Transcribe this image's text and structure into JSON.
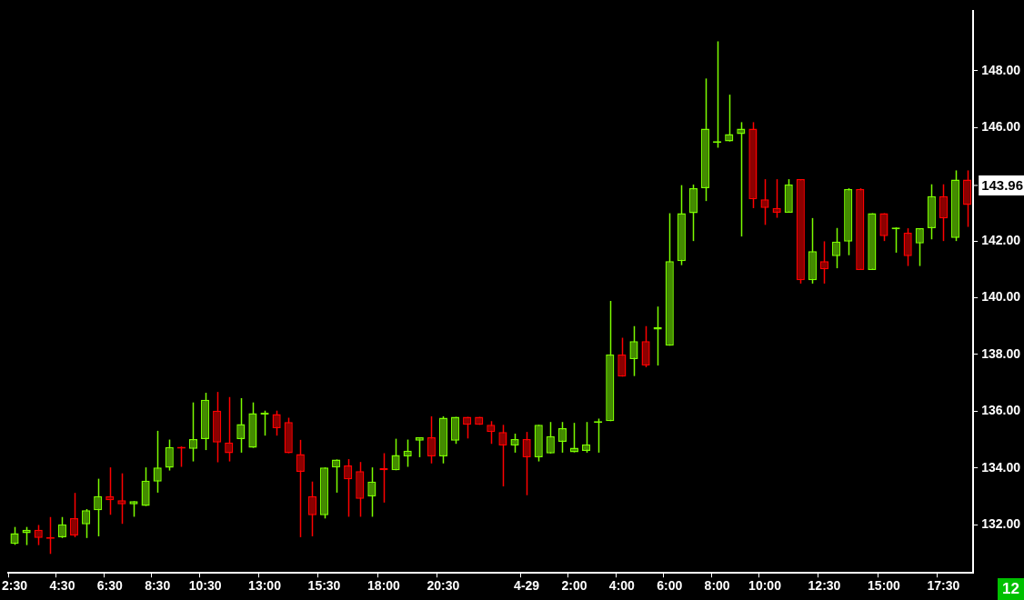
{
  "chart_data": {
    "type": "candlestick",
    "categories": [
      "2:30",
      null,
      null,
      null,
      "4:30",
      null,
      null,
      null,
      "6:30",
      null,
      null,
      null,
      "8:30",
      null,
      null,
      null,
      "10:30",
      null,
      null,
      null,
      null,
      "13:00",
      null,
      null,
      null,
      null,
      "15:30",
      null,
      null,
      null,
      null,
      "18:00",
      null,
      null,
      null,
      null,
      "20:30",
      null,
      null,
      null,
      null,
      null,
      null,
      "4-29",
      null,
      null,
      null,
      "2:00",
      null,
      null,
      null,
      "4:00",
      null,
      null,
      null,
      "6:00",
      null,
      null,
      null,
      "8:00",
      null,
      null,
      null,
      "10:00",
      null,
      null,
      null,
      null,
      "12:30",
      null,
      null,
      null,
      null,
      "15:00",
      null,
      null,
      null,
      null,
      "17:30",
      null,
      null
    ],
    "ohlc": [
      [
        131.32,
        131.92,
        131.29,
        131.7
      ],
      [
        131.7,
        131.92,
        131.28,
        131.82
      ],
      [
        131.82,
        131.99,
        131.28,
        131.53
      ],
      [
        131.55,
        132.27,
        130.97,
        131.5
      ],
      [
        131.56,
        132.27,
        131.53,
        132.01
      ],
      [
        132.23,
        133.12,
        131.56,
        131.62
      ],
      [
        132.01,
        132.55,
        131.53,
        132.51
      ],
      [
        132.51,
        133.62,
        131.59,
        133.01
      ],
      [
        133.01,
        134.02,
        132.35,
        132.86
      ],
      [
        132.86,
        133.81,
        132.03,
        132.72
      ],
      [
        132.72,
        132.83,
        132.28,
        132.83
      ],
      [
        132.66,
        134.02,
        132.66,
        133.55
      ],
      [
        133.52,
        135.31,
        133.13,
        134.02
      ],
      [
        134.01,
        135.0,
        133.91,
        134.74
      ],
      [
        134.74,
        134.76,
        134.04,
        134.68
      ],
      [
        134.67,
        136.31,
        134.23,
        135.02
      ],
      [
        135.02,
        136.65,
        134.63,
        136.4
      ],
      [
        136.02,
        136.68,
        134.2,
        134.9
      ],
      [
        134.9,
        136.5,
        134.23,
        134.52
      ],
      [
        135.02,
        136.46,
        134.54,
        135.55
      ],
      [
        134.71,
        136.31,
        134.71,
        135.93
      ],
      [
        135.88,
        136.02,
        135.14,
        135.93
      ],
      [
        135.9,
        136.02,
        135.14,
        135.4
      ],
      [
        135.62,
        135.77,
        134.52,
        134.52
      ],
      [
        134.49,
        134.99,
        131.56,
        133.86
      ],
      [
        133.01,
        133.52,
        131.59,
        132.33
      ],
      [
        132.33,
        134.02,
        132.22,
        134.02
      ],
      [
        134.02,
        134.3,
        133.13,
        134.3
      ],
      [
        134.09,
        134.31,
        132.28,
        133.6
      ],
      [
        133.89,
        134.21,
        132.28,
        132.91
      ],
      [
        133.0,
        134.02,
        132.28,
        133.52
      ],
      [
        133.99,
        134.52,
        132.78,
        133.92
      ],
      [
        133.92,
        135.03,
        133.92,
        134.46
      ],
      [
        134.41,
        135.0,
        134.04,
        134.61
      ],
      [
        134.96,
        135.08,
        134.38,
        135.08
      ],
      [
        135.08,
        135.82,
        134.16,
        134.41
      ],
      [
        134.41,
        135.82,
        134.16,
        135.77
      ],
      [
        134.96,
        135.8,
        134.85,
        135.8
      ],
      [
        135.8,
        135.8,
        135.04,
        135.52
      ],
      [
        135.8,
        135.8,
        135.52,
        135.52
      ],
      [
        135.52,
        135.65,
        134.85,
        135.27
      ],
      [
        135.27,
        135.52,
        133.35,
        134.79
      ],
      [
        134.79,
        135.21,
        134.54,
        135.02
      ],
      [
        135.02,
        135.27,
        133.04,
        134.38
      ],
      [
        134.38,
        135.52,
        134.23,
        135.52
      ],
      [
        134.51,
        135.62,
        134.51,
        135.12
      ],
      [
        134.92,
        135.62,
        134.54,
        135.4
      ],
      [
        134.55,
        135.59,
        134.55,
        134.71
      ],
      [
        134.6,
        135.62,
        134.54,
        134.83
      ],
      [
        135.59,
        135.74,
        134.54,
        135.65
      ],
      [
        135.65,
        139.89,
        135.65,
        138.0
      ],
      [
        138.0,
        138.59,
        137.22,
        137.22
      ],
      [
        137.84,
        139.0,
        137.24,
        138.47
      ],
      [
        138.47,
        139.0,
        137.55,
        137.61
      ],
      [
        138.88,
        139.69,
        137.61,
        138.97
      ],
      [
        138.31,
        142.98,
        138.31,
        141.29
      ],
      [
        141.29,
        143.97,
        141.15,
        142.98
      ],
      [
        142.98,
        143.99,
        142.0,
        143.86
      ],
      [
        143.86,
        147.73,
        143.41,
        145.96
      ],
      [
        145.46,
        149.04,
        145.29,
        145.5
      ],
      [
        145.51,
        147.16,
        145.51,
        145.77
      ],
      [
        145.77,
        146.19,
        142.16,
        145.96
      ],
      [
        145.96,
        146.19,
        143.16,
        143.47
      ],
      [
        143.47,
        144.18,
        142.57,
        143.17
      ],
      [
        143.17,
        144.18,
        142.82,
        143.0
      ],
      [
        143.0,
        144.18,
        143.0,
        143.99
      ],
      [
        144.18,
        144.18,
        140.5,
        140.62
      ],
      [
        140.62,
        142.81,
        140.5,
        141.64
      ],
      [
        141.29,
        141.99,
        140.5,
        141.0
      ],
      [
        141.47,
        142.46,
        141.04,
        141.98
      ],
      [
        141.98,
        143.86,
        141.5,
        143.83
      ],
      [
        143.83,
        143.86,
        140.98,
        140.98
      ],
      [
        140.98,
        142.98,
        140.98,
        142.98
      ],
      [
        142.98,
        142.98,
        142.0,
        142.17
      ],
      [
        142.41,
        142.48,
        141.59,
        142.45
      ],
      [
        142.29,
        142.45,
        141.12,
        141.47
      ],
      [
        141.92,
        142.45,
        141.12,
        142.45
      ],
      [
        142.45,
        144.0,
        142.06,
        143.58
      ],
      [
        143.58,
        144.0,
        142.0,
        142.8
      ],
      [
        142.11,
        144.49,
        142.0,
        144.17
      ],
      [
        144.17,
        144.49,
        142.5,
        143.27
      ]
    ],
    "colors": [
      "#7cfc00",
      "#7cfc00",
      "#ff0000",
      "#ff0000",
      "#7cfc00",
      "#ff0000",
      "#7cfc00",
      "#7cfc00",
      "#ff0000",
      "#ff0000",
      "#7cfc00",
      "#7cfc00",
      "#7cfc00",
      "#7cfc00",
      "#ff0000",
      "#7cfc00",
      "#7cfc00",
      "#ff0000",
      "#ff0000",
      "#7cfc00",
      "#7cfc00",
      "#7cfc00",
      "#ff0000",
      "#ff0000",
      "#ff0000",
      "#ff0000",
      "#7cfc00",
      "#7cfc00",
      "#ff0000",
      "#ff0000",
      "#7cfc00",
      "#ff0000",
      "#7cfc00",
      "#7cfc00",
      "#7cfc00",
      "#ff0000",
      "#7cfc00",
      "#7cfc00",
      "#ff0000",
      "#ff0000",
      "#ff0000",
      "#ff0000",
      "#7cfc00",
      "#ff0000",
      "#7cfc00",
      "#7cfc00",
      "#7cfc00",
      "#7cfc00",
      "#7cfc00",
      "#7cfc00",
      "#7cfc00",
      "#ff0000",
      "#7cfc00",
      "#ff0000",
      "#7cfc00",
      "#7cfc00",
      "#7cfc00",
      "#7cfc00",
      "#7cfc00",
      "#7cfc00",
      "#7cfc00",
      "#7cfc00",
      "#ff0000",
      "#ff0000",
      "#ff0000",
      "#7cfc00",
      "#ff0000",
      "#7cfc00",
      "#ff0000",
      "#7cfc00",
      "#7cfc00",
      "#ff0000",
      "#7cfc00",
      "#ff0000",
      "#7cfc00",
      "#ff0000",
      "#7cfc00",
      "#7cfc00",
      "#ff0000",
      "#7cfc00",
      "#ff0000"
    ],
    "ylim": [
      130.3,
      150.1
    ],
    "yticks": [
      {
        "value": 132,
        "label": "132.00"
      },
      {
        "value": 134,
        "label": "134.00"
      },
      {
        "value": 136,
        "label": "136.00"
      },
      {
        "value": 138,
        "label": "138.00"
      },
      {
        "value": 140,
        "label": "140.00"
      },
      {
        "value": 142,
        "label": "142.00"
      },
      {
        "value": 146,
        "label": "146.00"
      },
      {
        "value": 148,
        "label": "148.00"
      }
    ],
    "annotations": [
      "12",
      "143.96"
    ]
  }
}
